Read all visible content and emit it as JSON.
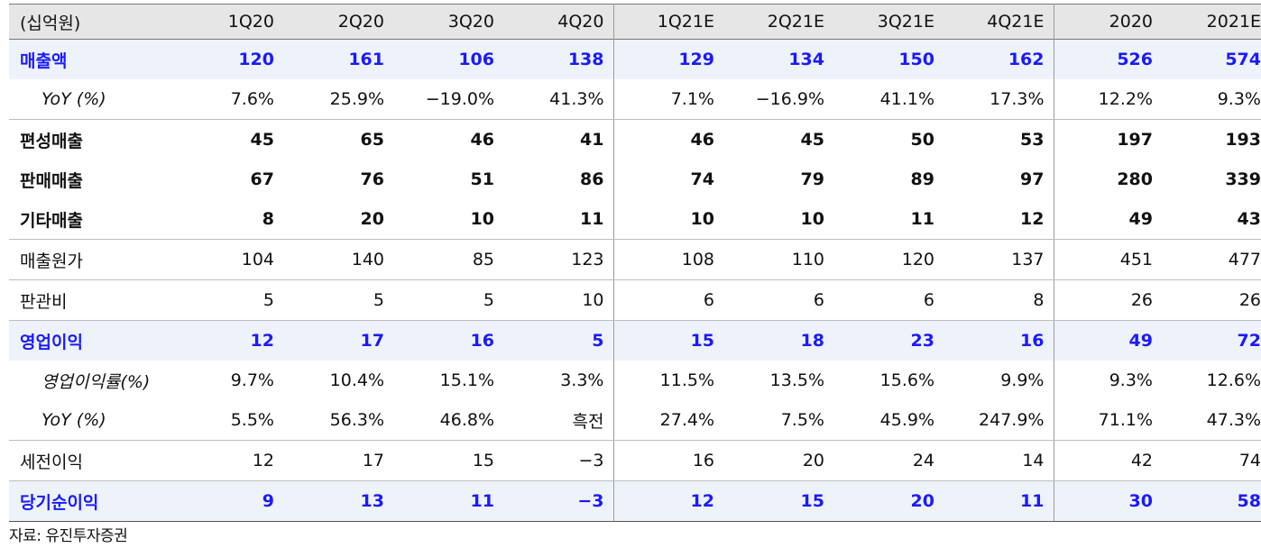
{
  "table": {
    "header": [
      "(십억원)",
      "1Q20",
      "2Q20",
      "3Q20",
      "4Q20",
      "1Q21E",
      "2Q21E",
      "3Q21E",
      "4Q21E",
      "2020",
      "2021E"
    ],
    "rows": [
      {
        "label": "매출액",
        "values": [
          "120",
          "161",
          "106",
          "138",
          "129",
          "134",
          "150",
          "162",
          "526",
          "574"
        ]
      },
      {
        "label": "YoY (%)",
        "values": [
          "7.6%",
          "25.9%",
          "−19.0%",
          "41.3%",
          "7.1%",
          "−16.9%",
          "41.1%",
          "17.3%",
          "12.2%",
          "9.3%"
        ]
      },
      {
        "label": "편성매출",
        "values": [
          "45",
          "65",
          "46",
          "41",
          "46",
          "45",
          "50",
          "53",
          "197",
          "193"
        ]
      },
      {
        "label": "판매매출",
        "values": [
          "67",
          "76",
          "51",
          "86",
          "74",
          "79",
          "89",
          "97",
          "280",
          "339"
        ]
      },
      {
        "label": "기타매출",
        "values": [
          "8",
          "20",
          "10",
          "11",
          "10",
          "10",
          "11",
          "12",
          "49",
          "43"
        ]
      },
      {
        "label": "매출원가",
        "values": [
          "104",
          "140",
          "85",
          "123",
          "108",
          "110",
          "120",
          "137",
          "451",
          "477"
        ]
      },
      {
        "label": "판관비",
        "values": [
          "5",
          "5",
          "5",
          "10",
          "6",
          "6",
          "6",
          "8",
          "26",
          "26"
        ]
      },
      {
        "label": "영업이익",
        "values": [
          "12",
          "17",
          "16",
          "5",
          "15",
          "18",
          "23",
          "16",
          "49",
          "72"
        ]
      },
      {
        "label": "영업이익률(%)",
        "values": [
          "9.7%",
          "10.4%",
          "15.1%",
          "3.3%",
          "11.5%",
          "13.5%",
          "15.6%",
          "9.9%",
          "9.3%",
          "12.6%"
        ]
      },
      {
        "label": "YoY (%)",
        "values": [
          "5.5%",
          "56.3%",
          "46.8%",
          "흑전",
          "27.4%",
          "7.5%",
          "45.9%",
          "247.9%",
          "71.1%",
          "47.3%"
        ]
      },
      {
        "label": "세전이익",
        "values": [
          "12",
          "17",
          "15",
          "−3",
          "16",
          "20",
          "24",
          "14",
          "42",
          "74"
        ]
      },
      {
        "label": "당기순이익",
        "values": [
          "9",
          "13",
          "11",
          "−3",
          "12",
          "15",
          "20",
          "11",
          "30",
          "58"
        ]
      }
    ]
  },
  "source": "자료: 유진투자증권",
  "colors": {
    "highlight_text": "#1a1aff",
    "highlight_bg": "#eef3fb",
    "header_bg": "#e6e6e6"
  }
}
